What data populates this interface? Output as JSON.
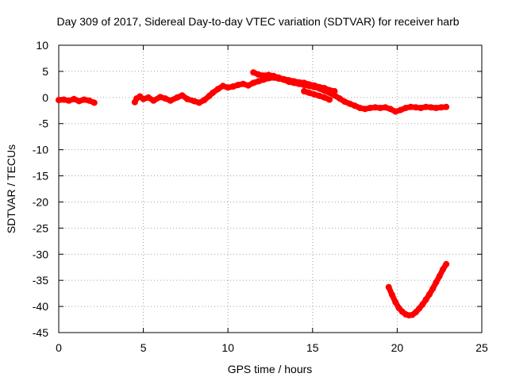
{
  "chart_data": {
    "type": "scatter",
    "title": "Day 309 of 2017, Sidereal Day-to-day VTEC variation (SDTVAR) for receiver harb",
    "xlabel": "GPS time / hours",
    "ylabel": "SDTVAR / TECUs",
    "xlim": [
      0,
      25
    ],
    "ylim": [
      -45,
      10
    ],
    "xticks": [
      0,
      5,
      10,
      15,
      20,
      25
    ],
    "yticks": [
      10,
      5,
      0,
      -5,
      -10,
      -15,
      -20,
      -25,
      -30,
      -35,
      -40,
      -45
    ],
    "grid": true,
    "series": [
      {
        "name": "SDTVAR",
        "color": "#ff0000",
        "segments": [
          [
            [
              0.0,
              -0.5
            ],
            [
              0.3,
              -0.4
            ],
            [
              0.6,
              -0.6
            ],
            [
              0.9,
              -0.3
            ],
            [
              1.2,
              -0.7
            ],
            [
              1.5,
              -0.4
            ],
            [
              1.8,
              -0.6
            ],
            [
              2.1,
              -1.0
            ]
          ],
          [
            [
              4.5,
              -0.9
            ],
            [
              4.6,
              -0.2
            ],
            [
              4.8,
              0.2
            ],
            [
              5.0,
              -0.3
            ],
            [
              5.3,
              0.0
            ],
            [
              5.6,
              -0.6
            ],
            [
              6.0,
              0.1
            ],
            [
              6.3,
              -0.2
            ],
            [
              6.6,
              -0.6
            ],
            [
              7.0,
              0.0
            ],
            [
              7.3,
              0.4
            ],
            [
              7.6,
              -0.3
            ],
            [
              8.0,
              -0.7
            ],
            [
              8.3,
              -1.0
            ],
            [
              8.6,
              -0.5
            ],
            [
              8.9,
              0.3
            ],
            [
              9.1,
              0.9
            ],
            [
              9.4,
              1.6
            ],
            [
              9.7,
              2.2
            ],
            [
              10.0,
              1.9
            ],
            [
              10.3,
              2.1
            ],
            [
              10.6,
              2.4
            ],
            [
              10.9,
              2.6
            ],
            [
              11.2,
              2.3
            ],
            [
              11.5,
              2.8
            ],
            [
              11.8,
              3.1
            ],
            [
              12.1,
              3.4
            ],
            [
              12.4,
              3.7
            ],
            [
              12.7,
              3.8
            ],
            [
              13.0,
              3.6
            ],
            [
              13.3,
              3.4
            ],
            [
              13.6,
              3.0
            ],
            [
              13.9,
              2.8
            ],
            [
              14.2,
              2.6
            ],
            [
              14.5,
              2.4
            ],
            [
              14.8,
              2.2
            ],
            [
              15.1,
              2.0
            ],
            [
              15.4,
              1.7
            ],
            [
              15.7,
              1.3
            ],
            [
              16.0,
              0.9
            ],
            [
              16.3,
              0.4
            ],
            [
              16.6,
              -0.2
            ],
            [
              16.9,
              -0.8
            ],
            [
              17.2,
              -1.2
            ],
            [
              17.5,
              -1.6
            ],
            [
              17.8,
              -2.0
            ],
            [
              18.1,
              -2.2
            ],
            [
              18.4,
              -2.0
            ],
            [
              18.7,
              -1.9
            ],
            [
              19.0,
              -2.0
            ],
            [
              19.3,
              -1.9
            ],
            [
              19.6,
              -2.2
            ],
            [
              19.9,
              -2.7
            ],
            [
              20.2,
              -2.4
            ],
            [
              20.5,
              -2.0
            ],
            [
              20.8,
              -1.8
            ],
            [
              21.1,
              -1.9
            ],
            [
              21.4,
              -2.0
            ],
            [
              21.7,
              -1.8
            ],
            [
              22.0,
              -1.9
            ],
            [
              22.3,
              -2.0
            ],
            [
              22.6,
              -1.9
            ],
            [
              22.9,
              -1.8
            ]
          ],
          [
            [
              11.5,
              4.8
            ],
            [
              11.8,
              4.4
            ],
            [
              12.1,
              4.2
            ],
            [
              12.4,
              4.3
            ],
            [
              12.7,
              4.1
            ],
            [
              13.0,
              3.8
            ],
            [
              13.3,
              3.5
            ],
            [
              13.6,
              3.3
            ],
            [
              13.9,
              3.1
            ],
            [
              14.2,
              2.9
            ],
            [
              14.5,
              2.8
            ],
            [
              14.8,
              2.5
            ],
            [
              15.1,
              2.3
            ],
            [
              15.4,
              2.0
            ],
            [
              15.7,
              1.8
            ],
            [
              16.0,
              1.4
            ],
            [
              16.3,
              1.2
            ]
          ],
          [
            [
              14.5,
              1.2
            ],
            [
              14.8,
              0.9
            ],
            [
              15.1,
              0.6
            ],
            [
              15.4,
              0.3
            ],
            [
              15.7,
              0.0
            ],
            [
              16.0,
              -0.4
            ]
          ],
          [
            [
              19.5,
              -36.3
            ],
            [
              19.7,
              -37.8
            ],
            [
              19.9,
              -39.2
            ],
            [
              20.1,
              -40.3
            ],
            [
              20.3,
              -41.0
            ],
            [
              20.5,
              -41.5
            ],
            [
              20.7,
              -41.7
            ],
            [
              20.9,
              -41.6
            ],
            [
              21.1,
              -41.1
            ],
            [
              21.3,
              -40.4
            ],
            [
              21.5,
              -39.6
            ],
            [
              21.7,
              -38.7
            ],
            [
              21.9,
              -37.7
            ],
            [
              22.1,
              -36.6
            ],
            [
              22.3,
              -35.4
            ],
            [
              22.5,
              -34.2
            ],
            [
              22.7,
              -32.9
            ],
            [
              22.9,
              -31.9
            ]
          ]
        ]
      }
    ]
  }
}
